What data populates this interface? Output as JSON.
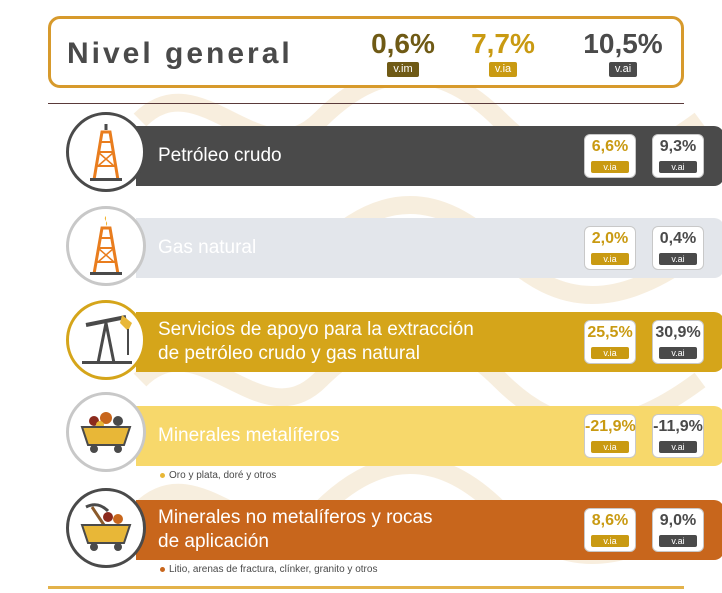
{
  "header": {
    "title": "Nivel general",
    "kpis": [
      {
        "value": "0,6%",
        "tag": "v.im",
        "color": "#6f5a15",
        "tag_color": "#6f5a15"
      },
      {
        "value": "7,7%",
        "tag": "v.ia",
        "color": "#c99a12",
        "tag_color": "#c99a12"
      },
      {
        "value": "10,5%",
        "tag": "v.ai",
        "color": "#4a4a4a",
        "tag_color": "#4a4a4a"
      }
    ]
  },
  "rows": [
    {
      "label": "Petróleo crudo",
      "icon": "oil-rig-icon",
      "bar_color": "#4a4a4a",
      "label_color": "#ffffff",
      "via": "6,6%",
      "vai": "9,3%",
      "via_color": "#c99a12",
      "vai_color": "#4a4a4a"
    },
    {
      "label": "Gas natural",
      "icon": "gas-rig-icon",
      "bar_color": "#e3e6eb",
      "label_color": "#ffffff",
      "via": "2,0%",
      "vai": "0,4%",
      "via_color": "#c99a12",
      "vai_color": "#4a4a4a"
    },
    {
      "label": "Servicios de apoyo para la extracción de petróleo crudo y gas natural",
      "icon": "pumpjack-icon",
      "bar_color": "#d5a51a",
      "label_color": "#ffffff",
      "via": "25,5%",
      "vai": "30,9%",
      "via_color": "#c99a12",
      "vai_color": "#4a4a4a"
    },
    {
      "label": "Minerales metalíferos",
      "icon": "mine-cart-icon",
      "bar_color": "#f7d86b",
      "label_color": "#ffffff",
      "via": "-21,9%",
      "vai": "-11,9%",
      "via_color": "#c99a12",
      "vai_color": "#4a4a4a",
      "note": "Oro y plata, doré y otros",
      "note_dot": "#e8b737"
    },
    {
      "label": "Minerales no metalíferos y rocas de aplicación",
      "icon": "pickaxe-cart-icon",
      "bar_color": "#c8661c",
      "label_color": "#ffffff",
      "via": "8,6%",
      "vai": "9,0%",
      "via_color": "#c99a12",
      "vai_color": "#4a4a4a",
      "note": "Litio, arenas de fractura, clínker, granito y otros",
      "note_dot": "#c8661c"
    }
  ]
}
